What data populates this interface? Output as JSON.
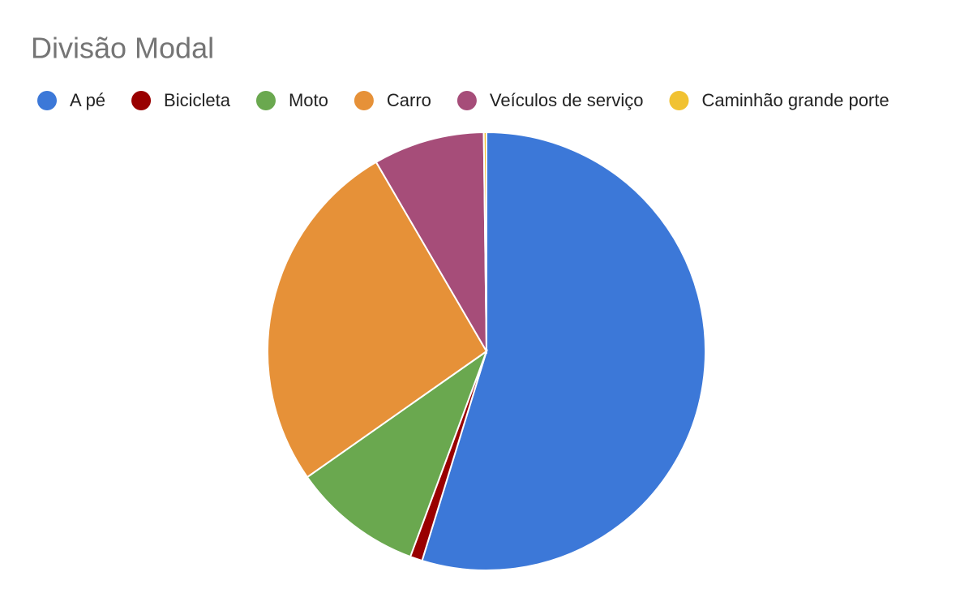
{
  "chart_data": {
    "type": "pie",
    "title": "Divisão Modal",
    "categories": [
      "A pé",
      "Bicicleta",
      "Moto",
      "Carro",
      "Veículos de serviço",
      "Caminhão grande porte"
    ],
    "values": [
      54.7,
      0.9,
      9.6,
      26.3,
      8.2,
      0.2
    ],
    "colors": [
      "#3c78d8",
      "#990000",
      "#6aa84f",
      "#e69138",
      "#a64d79",
      "#f1c232"
    ],
    "legend": "top"
  }
}
